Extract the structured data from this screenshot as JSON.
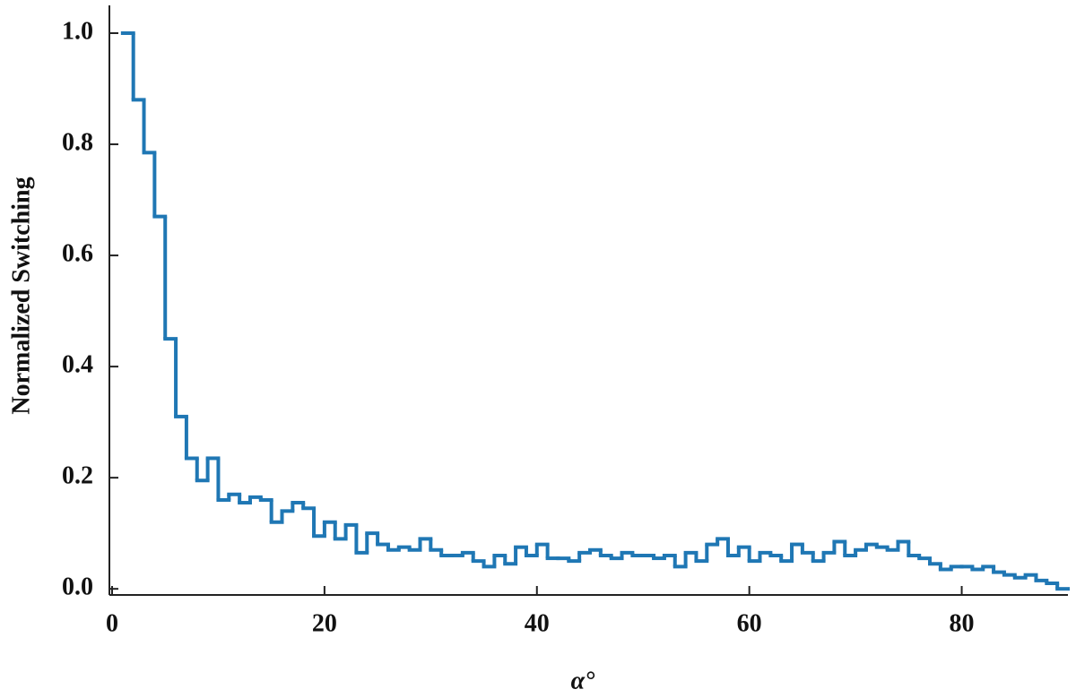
{
  "chart_data": {
    "type": "step-histogram",
    "xlabel": "α°",
    "ylabel": "Normalized Switching",
    "color": "#1f77b4",
    "bins": [
      1,
      2,
      3,
      4,
      5,
      6,
      7,
      8,
      9,
      10,
      11,
      12,
      13,
      14,
      15,
      16,
      17,
      18,
      19,
      20,
      21,
      22,
      23,
      24,
      25,
      26,
      27,
      28,
      29,
      30,
      31,
      32,
      33,
      34,
      35,
      36,
      37,
      38,
      39,
      40,
      41,
      42,
      43,
      44,
      45,
      46,
      47,
      48,
      49,
      50,
      51,
      52,
      53,
      54,
      55,
      56,
      57,
      58,
      59,
      60,
      61,
      62,
      63,
      64,
      65,
      66,
      67,
      68,
      69,
      70,
      71,
      72,
      73,
      74,
      75,
      76,
      77,
      78,
      79,
      80,
      81,
      82,
      83,
      84,
      85,
      86,
      87,
      88,
      89,
      90
    ],
    "values": [
      1.0,
      0.88,
      0.785,
      0.67,
      0.45,
      0.31,
      0.235,
      0.195,
      0.235,
      0.16,
      0.17,
      0.155,
      0.165,
      0.16,
      0.12,
      0.14,
      0.155,
      0.145,
      0.095,
      0.12,
      0.09,
      0.115,
      0.065,
      0.1,
      0.08,
      0.07,
      0.075,
      0.07,
      0.09,
      0.07,
      0.06,
      0.06,
      0.065,
      0.05,
      0.04,
      0.06,
      0.045,
      0.075,
      0.06,
      0.08,
      0.055,
      0.055,
      0.05,
      0.065,
      0.07,
      0.06,
      0.055,
      0.065,
      0.06,
      0.06,
      0.055,
      0.06,
      0.04,
      0.065,
      0.05,
      0.08,
      0.09,
      0.06,
      0.075,
      0.05,
      0.065,
      0.06,
      0.05,
      0.08,
      0.065,
      0.05,
      0.065,
      0.085,
      0.06,
      0.07,
      0.08,
      0.075,
      0.07,
      0.085,
      0.06,
      0.055,
      0.045,
      0.035,
      0.04,
      0.04,
      0.035,
      0.04,
      0.03,
      0.025,
      0.02,
      0.025,
      0.015,
      0.01,
      0.0
    ],
    "xlim": [
      0,
      90
    ],
    "ylim": [
      -0.011,
      1.05
    ],
    "xticks": [
      0,
      20,
      40,
      60,
      80
    ],
    "yticks": [
      {
        "value": 0,
        "label": "0.0"
      },
      0.2,
      0.4,
      0.6,
      0.8,
      {
        "value": 1,
        "label": "1.0"
      }
    ]
  }
}
